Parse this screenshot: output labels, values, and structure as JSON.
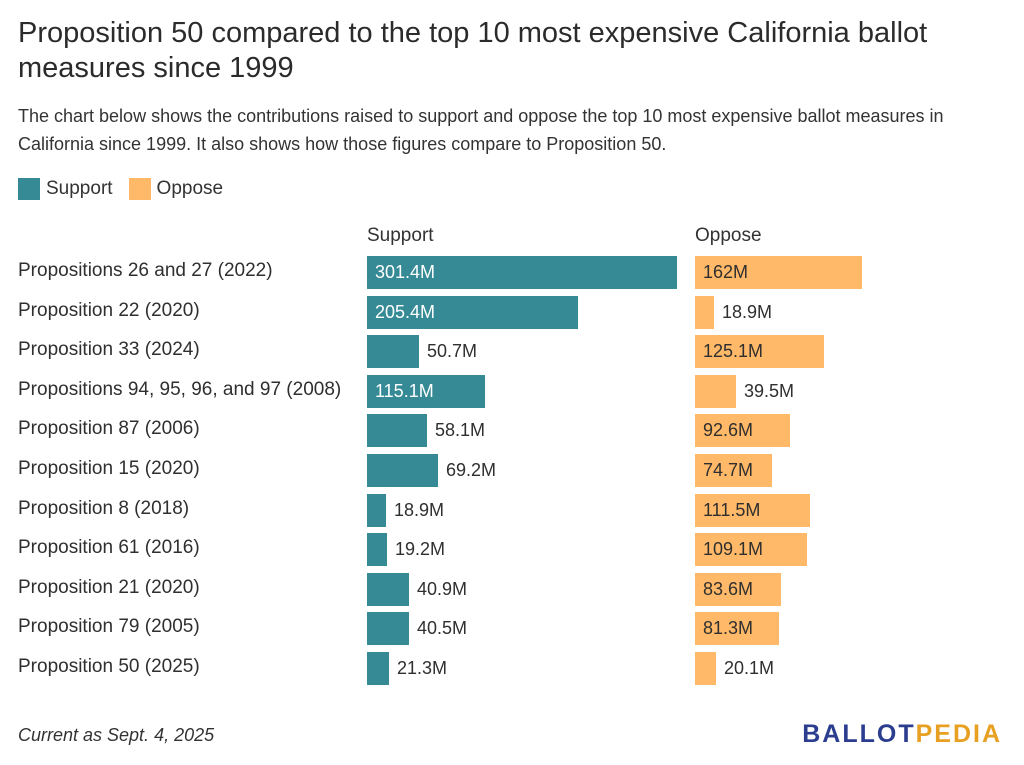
{
  "title": "Proposition 50 compared to the top 10 most expensive California ballot measures since 1999",
  "subtitle": "The chart below shows the contributions raised to support and oppose the top 10 most expensive ballot measures in California since 1999. It also shows how those figures compare to Proposition 50.",
  "legend": {
    "support_label": "Support",
    "oppose_label": "Oppose"
  },
  "colors": {
    "support": "#358a96",
    "oppose": "#ffb968"
  },
  "chart_data": {
    "type": "bar",
    "orientation": "horizontal",
    "unit": "M",
    "columns": [
      "Support",
      "Oppose"
    ],
    "categories": [
      "Propositions 26 and 27 (2022)",
      "Proposition 22 (2020)",
      "Proposition 33 (2024)",
      "Propositions 94, 95, 96, and 97 (2008)",
      "Proposition 87 (2006)",
      "Proposition 15 (2020)",
      "Proposition 8 (2018)",
      "Proposition 61 (2016)",
      "Proposition 21 (2020)",
      "Proposition 79 (2005)",
      "Proposition 50 (2025)"
    ],
    "series": [
      {
        "name": "Support",
        "values": [
          301.4,
          205.4,
          50.7,
          115.1,
          58.1,
          69.2,
          18.9,
          19.2,
          40.9,
          40.5,
          21.3
        ],
        "labels": [
          "301.4M",
          "205.4M",
          "50.7M",
          "115.1M",
          "58.1M",
          "69.2M",
          "18.9M",
          "19.2M",
          "40.9M",
          "40.5M",
          "21.3M"
        ]
      },
      {
        "name": "Oppose",
        "values": [
          162,
          18.9,
          125.1,
          39.5,
          92.6,
          74.7,
          111.5,
          109.1,
          83.6,
          81.3,
          20.1
        ],
        "labels": [
          "162M",
          "18.9M",
          "125.1M",
          "39.5M",
          "92.6M",
          "74.7M",
          "111.5M",
          "109.1M",
          "83.6M",
          "81.3M",
          "20.1M"
        ]
      }
    ]
  },
  "footnote": "Current as Sept. 4, 2025",
  "logo": {
    "part1": "BALLOT",
    "part2": "PEDIA"
  }
}
